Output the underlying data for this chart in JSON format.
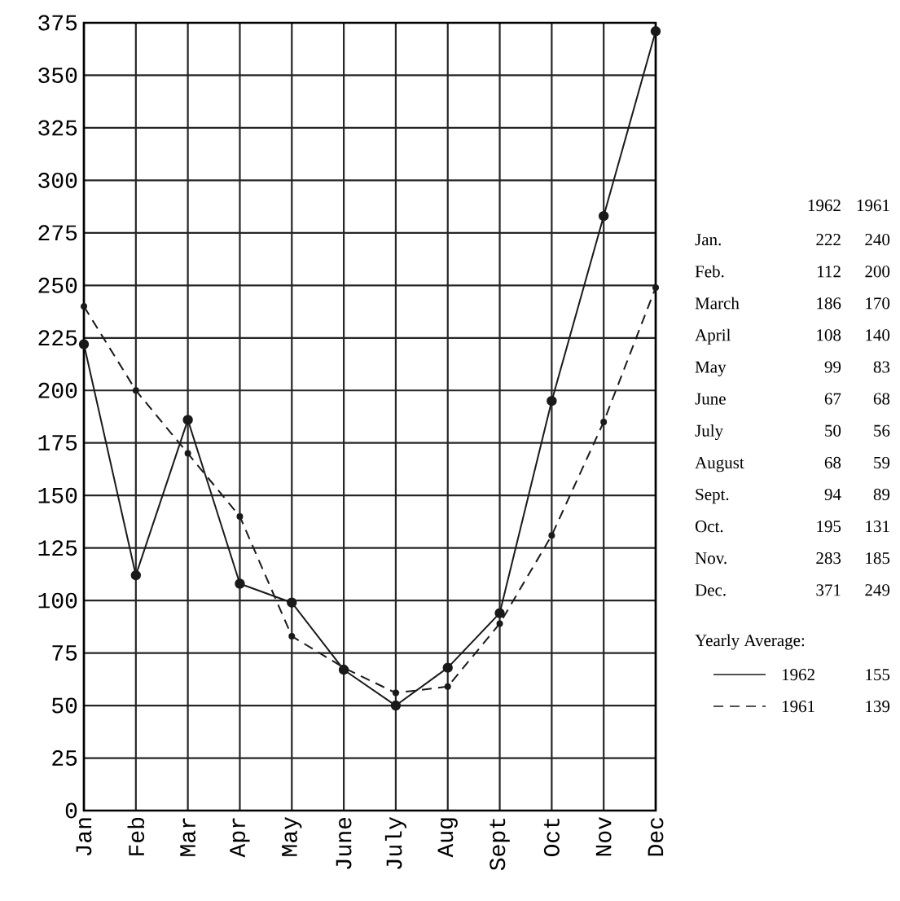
{
  "chart_data": [
    {
      "type": "line",
      "categories": [
        "Jan",
        "Feb",
        "Mar",
        "Apr",
        "May",
        "June",
        "July",
        "Aug",
        "Sept",
        "Oct",
        "Nov",
        "Dec"
      ],
      "series": [
        {
          "name": "1962",
          "color": "#1a1a1a",
          "line_style": "solid",
          "values": [
            222,
            112,
            186,
            108,
            99,
            67,
            50,
            68,
            94,
            195,
            283,
            371
          ]
        },
        {
          "name": "1961",
          "color": "#1a1a1a",
          "line_style": "dashed",
          "values": [
            240,
            200,
            170,
            140,
            83,
            68,
            56,
            59,
            89,
            131,
            185,
            249
          ]
        }
      ],
      "ylim": [
        0,
        375
      ],
      "yticks": [
        0,
        25,
        50,
        75,
        100,
        125,
        150,
        175,
        200,
        225,
        250,
        275,
        300,
        325,
        350,
        375
      ],
      "grid": true,
      "marker": "circle",
      "legend": "right"
    },
    {
      "type": "other",
      "annotations": [
        "1962",
        "1961",
        "Jan.",
        "222",
        "240",
        "Feb.",
        "112",
        "200",
        "March",
        "186",
        "170",
        "April",
        "108",
        "140",
        "May",
        "99",
        "83",
        "June",
        "67",
        "68",
        "July",
        "50",
        "56",
        "August",
        "68",
        "59",
        "Sept.",
        "94",
        "89",
        "Oct.",
        "195",
        "131",
        "Nov.",
        "283",
        "185",
        "Dec.",
        "371",
        "249",
        "Yearly Average:",
        "155",
        "139"
      ]
    }
  ]
}
